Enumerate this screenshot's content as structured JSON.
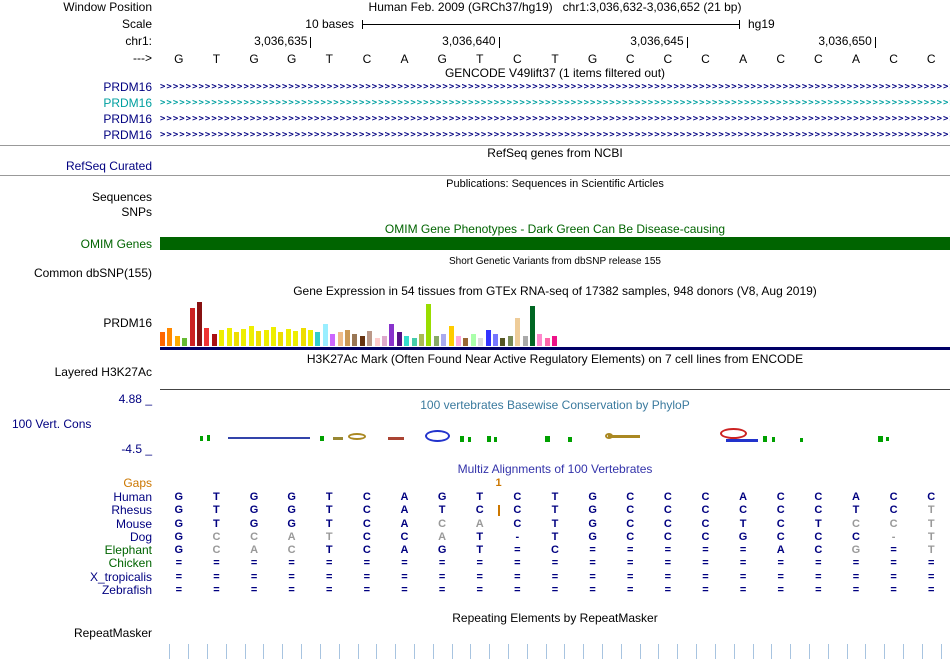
{
  "colors": {
    "navy": "#000080",
    "teal": "#00a0a0",
    "dark_green": "#006400",
    "orange": "#cc7700",
    "gray": "#999999",
    "phylop_title": "#3a7a9e",
    "multiz_title": "#3333aa",
    "grid_blue": "#a8c4e0",
    "gtex_baseline": "#000066"
  },
  "header": {
    "window_position_label": "Window Position",
    "title": "Human Feb. 2009 (GRCh37/hg19)   chr1:3,036,632-3,036,652 (21 bp)",
    "scale_label": "Scale",
    "scale_value": "10 bases",
    "assembly": "hg19",
    "chrom_label": "chr1:",
    "ticks": [
      "3,036,635",
      "3,036,640",
      "3,036,645",
      "3,036,650"
    ],
    "strand_label": "--->",
    "sequence": "GTGGTCAGTCTGCCCACCACC"
  },
  "gencode": {
    "title": "GENCODE V49lift37 (1 items filtered out)",
    "arrow_char": ">",
    "arrow_count": 125,
    "transcripts": [
      {
        "label": "PRDM16",
        "color": "#000080"
      },
      {
        "label": "PRDM16",
        "color": "#00a0a0"
      },
      {
        "label": "PRDM16",
        "color": "#000080"
      },
      {
        "label": "PRDM16",
        "color": "#000080"
      }
    ]
  },
  "refseq": {
    "title": "RefSeq genes from NCBI",
    "label": "RefSeq Curated"
  },
  "publications": {
    "title": "Publications: Sequences in Scientific Articles",
    "sequences_label": "Sequences",
    "snps_label": "SNPs"
  },
  "omim": {
    "title": "OMIM Gene Phenotypes - Dark Green Can Be Disease-causing",
    "label": "OMIM Genes",
    "bar_color": "#006400"
  },
  "dbsnp": {
    "title": "Short Genetic Variants from dbSNP release 155",
    "label": "Common dbSNP(155)"
  },
  "gtex": {
    "title": "Gene Expression in 54 tissues from GTEx RNA-seq of 17382 samples, 948 donors (V8, Aug 2019)",
    "label": "PRDM16",
    "bars": [
      [
        14,
        "#ff6600"
      ],
      [
        18,
        "#ff8800"
      ],
      [
        10,
        "#ffaa00"
      ],
      [
        8,
        "#66bb33"
      ],
      [
        38,
        "#cc2222"
      ],
      [
        44,
        "#881111"
      ],
      [
        18,
        "#ee3333"
      ],
      [
        12,
        "#aa1111"
      ],
      [
        16,
        "#eeee00"
      ],
      [
        18,
        "#eeee00"
      ],
      [
        14,
        "#eedd00"
      ],
      [
        17,
        "#eeee00"
      ],
      [
        20,
        "#eeee00"
      ],
      [
        15,
        "#eedd00"
      ],
      [
        16,
        "#eeee00"
      ],
      [
        19,
        "#eeee00"
      ],
      [
        14,
        "#eedd00"
      ],
      [
        17,
        "#eeee00"
      ],
      [
        15,
        "#eeee00"
      ],
      [
        18,
        "#eedd00"
      ],
      [
        16,
        "#eeee00"
      ],
      [
        14,
        "#33cccc"
      ],
      [
        22,
        "#99eeff"
      ],
      [
        12,
        "#cc66ff"
      ],
      [
        14,
        "#eebb88"
      ],
      [
        16,
        "#cc9955"
      ],
      [
        12,
        "#997755"
      ],
      [
        10,
        "#663311"
      ],
      [
        15,
        "#bb9988"
      ],
      [
        8,
        "#ffcccc"
      ],
      [
        10,
        "#ddaacc"
      ],
      [
        22,
        "#8833cc"
      ],
      [
        14,
        "#551188"
      ],
      [
        10,
        "#33ddcc"
      ],
      [
        8,
        "#44ccaa"
      ],
      [
        12,
        "#aabb55"
      ],
      [
        42,
        "#99dd00"
      ],
      [
        10,
        "#88aa66"
      ],
      [
        12,
        "#aaaaee"
      ],
      [
        20,
        "#ffcc00"
      ],
      [
        10,
        "#ffaadd"
      ],
      [
        8,
        "#996633"
      ],
      [
        12,
        "#aaffaa"
      ],
      [
        8,
        "#dddddd"
      ],
      [
        16,
        "#3333ff"
      ],
      [
        12,
        "#7777ff"
      ],
      [
        8,
        "#555522"
      ],
      [
        10,
        "#778855"
      ],
      [
        28,
        "#eecc99"
      ],
      [
        10,
        "#aaaaaa"
      ],
      [
        40,
        "#006622"
      ],
      [
        12,
        "#ff88cc"
      ],
      [
        8,
        "#ff66aa"
      ],
      [
        10,
        "#ee1188"
      ]
    ]
  },
  "h3k27ac": {
    "title": "H3K27Ac Mark (Often Found Near Active Regulatory Elements) on 7 cell lines from ENCODE",
    "label": "Layered H3K27Ac"
  },
  "phylop": {
    "title": "100 vertebrates Basewise Conservation by PhyloP",
    "label": "100 Vert. Cons",
    "max_label": "4.88 _",
    "min_label": "-4.5 _",
    "marks": [
      [
        40,
        28,
        3,
        5,
        "#00a000",
        "r"
      ],
      [
        47,
        27,
        3,
        6,
        "#00a000",
        "r"
      ],
      [
        68,
        29,
        82,
        2,
        "#3344aa",
        "r"
      ],
      [
        160,
        28,
        4,
        5,
        "#00a000",
        "r"
      ],
      [
        173,
        29,
        10,
        3,
        "#998833",
        "r"
      ],
      [
        188,
        25,
        18,
        7,
        "#aa8822",
        "e"
      ],
      [
        228,
        29,
        16,
        3,
        "#aa4433",
        "r"
      ],
      [
        265,
        22,
        25,
        12,
        "#2233cc",
        "e"
      ],
      [
        300,
        28,
        4,
        6,
        "#00a000",
        "r"
      ],
      [
        308,
        29,
        3,
        5,
        "#00a000",
        "r"
      ],
      [
        327,
        28,
        4,
        6,
        "#00a000",
        "r"
      ],
      [
        334,
        29,
        3,
        5,
        "#00a000",
        "r"
      ],
      [
        385,
        28,
        5,
        6,
        "#00a000",
        "r"
      ],
      [
        408,
        29,
        4,
        5,
        "#00a000",
        "r"
      ],
      [
        445,
        25,
        8,
        6,
        "#aa8822",
        "e"
      ],
      [
        448,
        27,
        32,
        3,
        "#aa8822",
        "r"
      ],
      [
        560,
        20,
        27,
        11,
        "#cc2222",
        "e"
      ],
      [
        566,
        31,
        32,
        3,
        "#2233cc",
        "r"
      ],
      [
        603,
        28,
        4,
        6,
        "#00a000",
        "r"
      ],
      [
        612,
        29,
        3,
        5,
        "#00a000",
        "r"
      ],
      [
        640,
        30,
        3,
        4,
        "#00a000",
        "r"
      ],
      [
        718,
        28,
        5,
        6,
        "#00a000",
        "r"
      ],
      [
        726,
        29,
        3,
        4,
        "#00a000",
        "r"
      ]
    ]
  },
  "multiz": {
    "title": "Multiz Alignments of 100 Vertebrates",
    "gaps_label": "Gaps",
    "gap_value": "1",
    "gap_col": 9,
    "rows": [
      {
        "label": "Human",
        "color": "#000080",
        "bases": "GTGGTCAGTCTGCCCACCACC",
        "gray": []
      },
      {
        "label": "Rhesus",
        "color": "#000080",
        "bases": "GTGGTCATCCTGCCCCCCTCT",
        "gray": [
          21
        ],
        "gap_tick": true
      },
      {
        "label": "Mouse",
        "color": "#000080",
        "bases": "GTGGTCACACTGCCCTCTCCT",
        "gray": [
          8,
          9,
          19,
          20,
          21
        ]
      },
      {
        "label": "Dog",
        "color": "#000080",
        "bases": "GCCATCCAT-TGCCCGCCC-T",
        "gray": [
          2,
          3,
          4,
          5,
          8,
          20,
          21
        ]
      },
      {
        "label": "Elephant",
        "color": "#006400",
        "bases": "GCACTCAGT=C=====ACG=T",
        "gray": [
          2,
          3,
          4,
          19,
          21
        ]
      },
      {
        "label": "Chicken",
        "color": "#006400",
        "bases": "=====================",
        "gray": []
      },
      {
        "label": "X_tropicalis",
        "color": "#000080",
        "bases": "=====================",
        "gray": []
      },
      {
        "label": "Zebrafish",
        "color": "#000080",
        "bases": "=====================",
        "gray": []
      }
    ]
  },
  "repeatmasker": {
    "title": "Repeating Elements by RepeatMasker",
    "label": "RepeatMasker"
  },
  "ruler": {
    "line_count": 42
  }
}
